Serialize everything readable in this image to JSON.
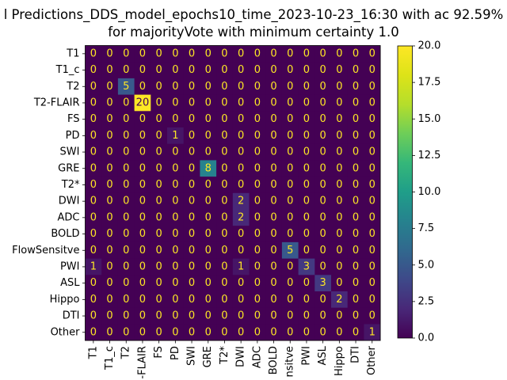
{
  "chart_data": {
    "type": "heatmap",
    "title": "l Predictions_DDS_model_epochs10_time_2023-10-23_16:30 with ac 92.59%",
    "subtitle": "for majorityVote with minimum certainty 1.0",
    "row_labels": [
      "T1",
      "T1_c",
      "T2",
      "T2-FLAIR",
      "FS",
      "PD",
      "SWI",
      "GRE",
      "T2*",
      "DWI",
      "ADC",
      "BOLD",
      "FlowSensitve",
      "PWI",
      "ASL",
      "Hippo",
      "DTI",
      "Other"
    ],
    "col_labels": [
      "T1",
      "T1_c",
      "T2",
      "-FLAIR",
      "FS",
      "PD",
      "SWI",
      "GRE",
      "T2*",
      "DWI",
      "ADC",
      "BOLD",
      "nsitve",
      "PWI",
      "ASL",
      "Hippo",
      "DTI",
      "Other"
    ],
    "matrix": [
      [
        0,
        0,
        0,
        0,
        0,
        0,
        0,
        0,
        0,
        0,
        0,
        0,
        0,
        0,
        0,
        0,
        0,
        0
      ],
      [
        0,
        0,
        0,
        0,
        0,
        0,
        0,
        0,
        0,
        0,
        0,
        0,
        0,
        0,
        0,
        0,
        0,
        0
      ],
      [
        0,
        0,
        5,
        0,
        0,
        0,
        0,
        0,
        0,
        0,
        0,
        0,
        0,
        0,
        0,
        0,
        0,
        0
      ],
      [
        0,
        0,
        0,
        20,
        0,
        0,
        0,
        0,
        0,
        0,
        0,
        0,
        0,
        0,
        0,
        0,
        0,
        0
      ],
      [
        0,
        0,
        0,
        0,
        0,
        0,
        0,
        0,
        0,
        0,
        0,
        0,
        0,
        0,
        0,
        0,
        0,
        0
      ],
      [
        0,
        0,
        0,
        0,
        0,
        1,
        0,
        0,
        0,
        0,
        0,
        0,
        0,
        0,
        0,
        0,
        0,
        0
      ],
      [
        0,
        0,
        0,
        0,
        0,
        0,
        0,
        0,
        0,
        0,
        0,
        0,
        0,
        0,
        0,
        0,
        0,
        0
      ],
      [
        0,
        0,
        0,
        0,
        0,
        0,
        0,
        8,
        0,
        0,
        0,
        0,
        0,
        0,
        0,
        0,
        0,
        0
      ],
      [
        0,
        0,
        0,
        0,
        0,
        0,
        0,
        0,
        0,
        0,
        0,
        0,
        0,
        0,
        0,
        0,
        0,
        0
      ],
      [
        0,
        0,
        0,
        0,
        0,
        0,
        0,
        0,
        0,
        2,
        0,
        0,
        0,
        0,
        0,
        0,
        0,
        0
      ],
      [
        0,
        0,
        0,
        0,
        0,
        0,
        0,
        0,
        0,
        2,
        0,
        0,
        0,
        0,
        0,
        0,
        0,
        0
      ],
      [
        0,
        0,
        0,
        0,
        0,
        0,
        0,
        0,
        0,
        0,
        0,
        0,
        0,
        0,
        0,
        0,
        0,
        0
      ],
      [
        0,
        0,
        0,
        0,
        0,
        0,
        0,
        0,
        0,
        0,
        0,
        0,
        5,
        0,
        0,
        0,
        0,
        0
      ],
      [
        1,
        0,
        0,
        0,
        0,
        0,
        0,
        0,
        0,
        1,
        0,
        0,
        0,
        3,
        0,
        0,
        0,
        0
      ],
      [
        0,
        0,
        0,
        0,
        0,
        0,
        0,
        0,
        0,
        0,
        0,
        0,
        0,
        0,
        3,
        0,
        0,
        0
      ],
      [
        0,
        0,
        0,
        0,
        0,
        0,
        0,
        0,
        0,
        0,
        0,
        0,
        0,
        0,
        0,
        2,
        0,
        0
      ],
      [
        0,
        0,
        0,
        0,
        0,
        0,
        0,
        0,
        0,
        0,
        0,
        0,
        0,
        0,
        0,
        0,
        0,
        0
      ],
      [
        0,
        0,
        0,
        0,
        0,
        0,
        0,
        0,
        0,
        0,
        0,
        0,
        0,
        0,
        0,
        0,
        0,
        1
      ]
    ],
    "colormap": "viridis",
    "vmin": 0,
    "vmax": 20,
    "colorbar_ticks": [
      "0.0",
      "2.5",
      "5.0",
      "7.5",
      "10.0",
      "12.5",
      "15.0",
      "17.5",
      "20.0"
    ],
    "colors": {
      "low_text": "#fde725",
      "high_text": "#440154"
    }
  }
}
